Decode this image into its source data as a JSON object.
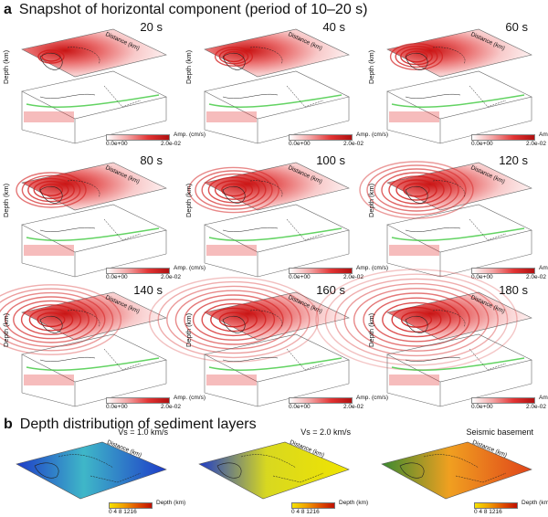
{
  "heading_a": {
    "letter": "a",
    "text": "Snapshot of horizontal component (period of 10–20 s)"
  },
  "heading_b": {
    "letter": "b",
    "text": "Depth distribution of sediment layers"
  },
  "axes": {
    "distance": "Distance (km)",
    "depth": "Depth (km)"
  },
  "colorbar_a": {
    "title": "Amp. (cm/s)",
    "min": "0.0e+00",
    "max": "2.0e-02"
  },
  "colorbar_b": {
    "title": "Depth (km)",
    "ticks": "0  4  8 1216"
  },
  "snapshots": [
    {
      "time": "20 s"
    },
    {
      "time": "40 s"
    },
    {
      "time": "60 s"
    },
    {
      "time": "80 s"
    },
    {
      "time": "100 s"
    },
    {
      "time": "120 s"
    },
    {
      "time": "140 s"
    },
    {
      "time": "160 s"
    },
    {
      "time": "180 s"
    }
  ],
  "depth_panels": [
    {
      "title": "Vs = 1.0 km/s"
    },
    {
      "title": "Vs = 2.0 km/s"
    },
    {
      "title": "Seismic basement"
    }
  ],
  "colors": {
    "amp_high": "#d81e1e",
    "amp_low": "#fbe3e3",
    "shallow": "#1e3cc8",
    "deep": "#e0441a",
    "mid": "#f0e400",
    "green_line": "#3cc83c"
  }
}
